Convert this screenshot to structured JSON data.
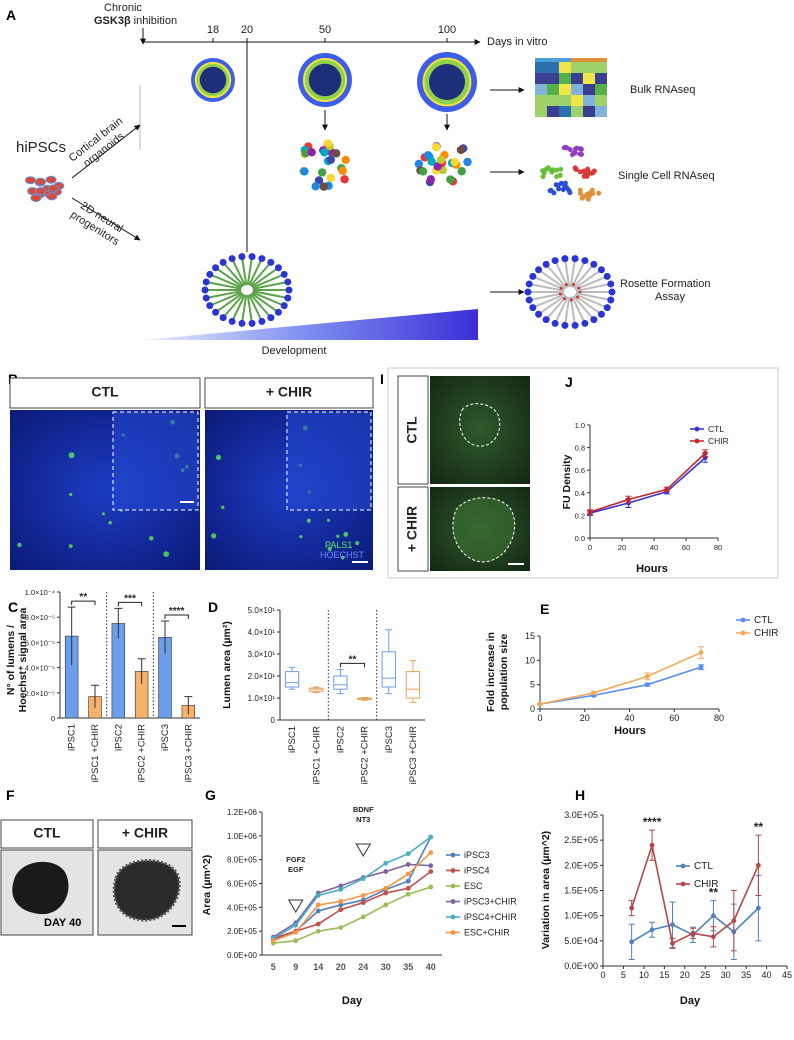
{
  "schematic": {
    "panel_label": "A",
    "chronic": "Chronic",
    "gsk": "GSK3β",
    "inhibition": "inhibition",
    "days": [
      18,
      20,
      50,
      100
    ],
    "days_label": "Days in vitro",
    "hipscs": "hiPSCs",
    "organoids": [
      "Cortical brain",
      "organoids"
    ],
    "progenitors": [
      "2D neural",
      "progenitors"
    ],
    "bulk": "Bulk RNAseq",
    "single_cell": "Single Cell RNAseq",
    "rosette": [
      "Rosette Formation",
      "Assay"
    ],
    "development": "Development"
  },
  "images": {
    "b": {
      "panel_label": "B",
      "ctl": "CTL",
      "chir": "+ CHIR",
      "stains": [
        "PALS1",
        "HOECHST"
      ]
    },
    "i": {
      "panel_label": "I",
      "ctl": "CTL",
      "chir": "+ CHIR"
    },
    "f": {
      "panel_label": "F",
      "ctl": "CTL",
      "chir": "+ CHIR",
      "day": "DAY 40"
    }
  },
  "chart_data": [
    {
      "type": "bar",
      "panel_label": "C",
      "y_label": [
        "N° of lumens /",
        "Hoechst⁺ signal area"
      ],
      "categories": [
        "iPSC1",
        "iPSC1 +CHIR",
        "iPSC2",
        "iPSC2 +CHIR",
        "iPSC3",
        "iPSC3 +CHIR"
      ],
      "values": [
        6.5e-05,
        1.7e-05,
        7.5e-05,
        3.7e-05,
        6.4e-05,
        1e-05
      ],
      "errors": [
        2.3e-05,
        9e-06,
        1.2e-05,
        1e-05,
        1.3e-05,
        7e-06
      ],
      "colors": [
        "#6d9eeb",
        "#f6b26b",
        "#6d9eeb",
        "#f6b26b",
        "#6d9eeb",
        "#f6b26b"
      ],
      "ylim": [
        0,
        0.0001
      ],
      "yticks": [
        0,
        {
          "value": 2e-05,
          "label": "2.0×10⁻⁵"
        },
        {
          "value": 4e-05,
          "label": "4.0×10⁻⁵"
        },
        {
          "value": 6e-05,
          "label": "6.0×10⁻⁵"
        },
        {
          "value": 8e-05,
          "label": "8.0×10⁻⁵"
        },
        {
          "value": 0.0001,
          "label": "1.0×10⁻⁴"
        }
      ],
      "annotations": [
        "**",
        "***",
        "****"
      ]
    },
    {
      "type": "box",
      "panel_label": "D",
      "y_label": [
        "Lumen area (µm²)"
      ],
      "categories": [
        "iPSC1",
        "iPSC1 +CHIR",
        "iPSC2",
        "iPSC2 +CHIR",
        "iPSC3",
        "iPSC3 +CHIR"
      ],
      "boxes": [
        {
          "min": 14,
          "q1": 15,
          "median": 17,
          "q3": 22,
          "max": 24
        },
        {
          "min": 12.5,
          "q1": 13,
          "median": 14,
          "q3": 14.5,
          "max": 15
        },
        {
          "min": 12,
          "q1": 14,
          "median": 16,
          "q3": 20,
          "max": 23
        },
        {
          "min": 9,
          "q1": 9.3,
          "median": 9.7,
          "q3": 10,
          "max": 10.2
        },
        {
          "min": 12,
          "q1": 15,
          "median": 19,
          "q3": 31,
          "max": 41
        },
        {
          "min": 8,
          "q1": 10,
          "median": 14,
          "q3": 22,
          "max": 27
        }
      ],
      "colors": [
        "#6d9eeb",
        "#e6a45c",
        "#6d9eeb",
        "#e6a45c",
        "#6d9eeb",
        "#e6a45c"
      ],
      "ylim": [
        0,
        50
      ],
      "yticks": [
        0,
        {
          "value": 10,
          "label": "1.0×10¹"
        },
        {
          "value": 20,
          "label": "2.0×10¹"
        },
        {
          "value": 30,
          "label": "3.0×10¹"
        },
        {
          "value": 40,
          "label": "4.0×10¹"
        },
        {
          "value": 50,
          "label": "5.0×10¹"
        }
      ],
      "annotations": [
        "**"
      ]
    },
    {
      "type": "line",
      "panel_label": "E",
      "y_label": [
        "Fold increase in",
        "population size"
      ],
      "x_label": "Hours",
      "x": [
        0,
        24,
        48,
        72
      ],
      "series": [
        {
          "name": "CTL",
          "color": "#5b8def",
          "values": [
            1,
            2.8,
            5,
            8.6
          ],
          "errors": [
            0.1,
            0.2,
            0.3,
            0.5
          ]
        },
        {
          "name": "CHIR",
          "color": "#f4a95a",
          "values": [
            1,
            3.3,
            6.7,
            11.6
          ],
          "errors": [
            0.1,
            0.3,
            0.7,
            1.2
          ]
        }
      ],
      "xlim": [
        0,
        80
      ],
      "xticks": [
        0,
        20,
        40,
        60,
        80
      ],
      "ylim": [
        0,
        15
      ],
      "yticks": [
        0,
        5,
        10,
        15
      ],
      "legend": "right"
    },
    {
      "type": "line",
      "panel_label": "G",
      "y_label": [
        "Area (µm^2)"
      ],
      "x_label": "Day",
      "categories": [
        "5",
        "9",
        "14",
        "20",
        "24",
        "30",
        "35",
        "40"
      ],
      "series": [
        {
          "name": "iPSC3",
          "color": "#4f81bd",
          "values": [
            130000,
            200000,
            370000,
            420000,
            460000,
            550000,
            620000,
            990000
          ]
        },
        {
          "name": "iPSC4",
          "color": "#c0504d",
          "values": [
            140000,
            200000,
            260000,
            380000,
            440000,
            520000,
            560000,
            700000
          ]
        },
        {
          "name": "ESC",
          "color": "#9bbb59",
          "values": [
            100000,
            120000,
            200000,
            230000,
            320000,
            420000,
            510000,
            570000
          ]
        },
        {
          "name": "iPSC3+CHIR",
          "color": "#8064a2",
          "values": [
            150000,
            270000,
            520000,
            580000,
            650000,
            700000,
            760000,
            750000
          ]
        },
        {
          "name": "iPSC4+CHIR",
          "color": "#4bacc6",
          "values": [
            140000,
            250000,
            500000,
            550000,
            640000,
            770000,
            850000,
            990000
          ]
        },
        {
          "name": "ESC+CHIR",
          "color": "#f79646",
          "values": [
            120000,
            190000,
            420000,
            450000,
            500000,
            560000,
            680000,
            860000
          ]
        }
      ],
      "ylim": [
        0,
        1200000
      ],
      "yticks": [
        {
          "value": 0,
          "label": "0.0E+00"
        },
        {
          "value": 200000,
          "label": "2.0E+05"
        },
        {
          "value": 400000,
          "label": "4.0E+05"
        },
        {
          "value": 600000,
          "label": "6.0E+05"
        },
        {
          "value": 800000,
          "label": "8.0E+05"
        },
        {
          "value": 1000000,
          "label": "1.0E+06"
        },
        {
          "value": 1200000,
          "label": "1.2E+06"
        }
      ],
      "annotations": [
        {
          "text": [
            "FGF2",
            "EGF"
          ],
          "x": "9"
        },
        {
          "text": [
            "BDNF",
            "NT3"
          ],
          "x": "24"
        }
      ],
      "legend": "right"
    },
    {
      "type": "line",
      "panel_label": "H",
      "y_label": [
        "Variation in area (µm^2)"
      ],
      "x_label": "Day",
      "x": [
        7,
        12,
        17,
        22,
        27,
        32,
        38
      ],
      "series": [
        {
          "name": "CTL",
          "color": "#4f81bd",
          "values": [
            48000,
            72000,
            82000,
            62000,
            100000,
            68000,
            115000
          ],
          "errors": [
            35000,
            15000,
            45000,
            15000,
            30000,
            55000,
            65000
          ]
        },
        {
          "name": "CHIR",
          "color": "#b5474a",
          "values": [
            115000,
            240000,
            45000,
            65000,
            58000,
            90000,
            200000
          ],
          "errors": [
            15000,
            30000,
            10000,
            10000,
            20000,
            60000,
            60000
          ]
        }
      ],
      "xlim": [
        0,
        45
      ],
      "xticks": [
        0,
        5,
        10,
        15,
        20,
        25,
        30,
        35,
        40,
        45
      ],
      "ylim": [
        0,
        300000
      ],
      "yticks": [
        {
          "value": 0,
          "label": "0.0E+00"
        },
        {
          "value": 50000,
          "label": "5.0E+04"
        },
        {
          "value": 100000,
          "label": "1.0E+05"
        },
        {
          "value": 150000,
          "label": "1.5E+05"
        },
        {
          "value": 200000,
          "label": "2.0E+05"
        },
        {
          "value": 250000,
          "label": "2.5E+05"
        },
        {
          "value": 300000,
          "label": "3.0E+05"
        }
      ],
      "annotations": [
        {
          "text": "****",
          "x": 12
        },
        {
          "text": "**",
          "x": 27
        },
        {
          "text": "**",
          "x": 38
        }
      ],
      "legend": "inside"
    },
    {
      "type": "line",
      "panel_label": "J",
      "y_label": [
        "FU Density"
      ],
      "x_label": "Hours",
      "x": [
        0,
        24,
        48,
        72
      ],
      "series": [
        {
          "name": "CTL",
          "color": "#3535d6",
          "values": [
            0.22,
            0.31,
            0.41,
            0.71
          ],
          "errors": [
            0.02,
            0.04,
            0.02,
            0.04
          ]
        },
        {
          "name": "CHIR",
          "color": "#c62828",
          "values": [
            0.23,
            0.34,
            0.43,
            0.75
          ],
          "errors": [
            0.02,
            0.03,
            0.02,
            0.03
          ]
        }
      ],
      "xlim": [
        0,
        80
      ],
      "xticks": [
        0,
        20,
        40,
        60,
        80
      ],
      "ylim": [
        0,
        1
      ],
      "yticks": [
        {
          "value": 0,
          "label": "0.0"
        },
        0.2,
        0.4,
        0.6,
        0.8,
        {
          "value": 1,
          "label": "1.0"
        }
      ],
      "legend": "inside"
    }
  ]
}
